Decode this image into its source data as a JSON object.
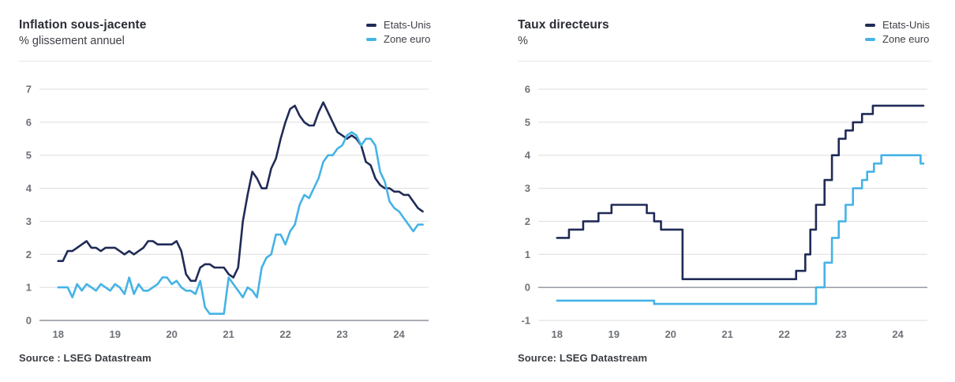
{
  "colors": {
    "us": "#202b57",
    "euro": "#45b3e6",
    "grid": "#dcddde",
    "zero_axis": "#8e929a",
    "tick_label": "#6e7278",
    "title": "#2a2d33",
    "subtitle": "#3c3f45",
    "source": "#3a3d43",
    "divider": "#e8e8ea"
  },
  "panels": [
    {
      "source": "Source : LSEG Datastream"
    },
    {
      "source": "Source: LSEG Datastream"
    }
  ],
  "chart_data": [
    {
      "type": "line",
      "title": "Inflation sous-jacente",
      "ylabel": "% glissement annuel",
      "x_start_year": 2018,
      "x_frequency": "monthly",
      "xtick_years": [
        2018,
        2019,
        2020,
        2021,
        2022,
        2023,
        2024
      ],
      "xtick_labels": [
        "18",
        "19",
        "20",
        "21",
        "22",
        "23",
        "24"
      ],
      "xlim": [
        2017.67,
        2024.52
      ],
      "ylim": [
        0,
        7
      ],
      "yticks": [
        0,
        1,
        2,
        3,
        4,
        5,
        6,
        7
      ],
      "grid": "horizontal",
      "legend_position": "top-right",
      "series": [
        {
          "name": "Etats-Unis",
          "color_key": "us",
          "values": [
            1.8,
            1.8,
            2.1,
            2.1,
            2.2,
            2.3,
            2.4,
            2.2,
            2.2,
            2.1,
            2.2,
            2.2,
            2.2,
            2.1,
            2.0,
            2.1,
            2.0,
            2.1,
            2.2,
            2.4,
            2.4,
            2.3,
            2.3,
            2.3,
            2.3,
            2.4,
            2.1,
            1.4,
            1.2,
            1.2,
            1.6,
            1.7,
            1.7,
            1.6,
            1.6,
            1.6,
            1.4,
            1.3,
            1.6,
            3.0,
            3.8,
            4.5,
            4.3,
            4.0,
            4.0,
            4.6,
            4.9,
            5.5,
            6.0,
            6.4,
            6.5,
            6.2,
            6.0,
            5.9,
            5.9,
            6.3,
            6.6,
            6.3,
            6.0,
            5.7,
            5.6,
            5.5,
            5.6,
            5.5,
            5.3,
            4.8,
            4.7,
            4.3,
            4.1,
            4.0,
            4.0,
            3.9,
            3.9,
            3.8,
            3.8,
            3.6,
            3.4,
            3.3
          ]
        },
        {
          "name": "Zone euro",
          "color_key": "euro",
          "values": [
            1.0,
            1.0,
            1.0,
            0.7,
            1.1,
            0.9,
            1.1,
            1.0,
            0.9,
            1.1,
            1.0,
            0.9,
            1.1,
            1.0,
            0.8,
            1.3,
            0.8,
            1.1,
            0.9,
            0.9,
            1.0,
            1.1,
            1.3,
            1.3,
            1.1,
            1.2,
            1.0,
            0.9,
            0.9,
            0.8,
            1.2,
            0.4,
            0.2,
            0.2,
            0.2,
            0.2,
            1.3,
            1.1,
            0.9,
            0.7,
            1.0,
            0.9,
            0.7,
            1.6,
            1.9,
            2.0,
            2.6,
            2.6,
            2.3,
            2.7,
            2.9,
            3.5,
            3.8,
            3.7,
            4.0,
            4.3,
            4.8,
            5.0,
            5.0,
            5.2,
            5.3,
            5.6,
            5.7,
            5.6,
            5.3,
            5.5,
            5.5,
            5.3,
            4.5,
            4.2,
            3.6,
            3.4,
            3.3,
            3.1,
            2.9,
            2.7,
            2.9,
            2.9
          ]
        }
      ]
    },
    {
      "type": "step",
      "title": "Taux directeurs",
      "ylabel": "%",
      "xtick_years": [
        2018,
        2019,
        2020,
        2021,
        2022,
        2023,
        2024
      ],
      "xtick_labels": [
        "18",
        "19",
        "20",
        "21",
        "22",
        "23",
        "24"
      ],
      "xlim": [
        2017.67,
        2024.52
      ],
      "x_end": 2024.45,
      "ylim": [
        -1,
        6
      ],
      "yticks": [
        -1,
        0,
        1,
        2,
        3,
        4,
        5,
        6
      ],
      "grid": "horizontal",
      "legend_position": "top-right",
      "series": [
        {
          "name": "Etats-Unis",
          "color_key": "us",
          "points": [
            [
              2018.0,
              1.5
            ],
            [
              2018.21,
              1.75
            ],
            [
              2018.46,
              2.0
            ],
            [
              2018.73,
              2.25
            ],
            [
              2018.96,
              2.5
            ],
            [
              2019.58,
              2.25
            ],
            [
              2019.71,
              2.0
            ],
            [
              2019.83,
              1.75
            ],
            [
              2020.21,
              0.25
            ],
            [
              2022.21,
              0.5
            ],
            [
              2022.37,
              1.0
            ],
            [
              2022.46,
              1.75
            ],
            [
              2022.56,
              2.5
            ],
            [
              2022.71,
              3.25
            ],
            [
              2022.84,
              4.0
            ],
            [
              2022.96,
              4.5
            ],
            [
              2023.08,
              4.75
            ],
            [
              2023.21,
              5.0
            ],
            [
              2023.37,
              5.25
            ],
            [
              2023.56,
              5.5
            ]
          ]
        },
        {
          "name": "Zone euro",
          "color_key": "euro",
          "points": [
            [
              2018.0,
              -0.4
            ],
            [
              2019.71,
              -0.5
            ],
            [
              2022.56,
              0.0
            ],
            [
              2022.71,
              0.75
            ],
            [
              2022.84,
              1.5
            ],
            [
              2022.96,
              2.0
            ],
            [
              2023.08,
              2.5
            ],
            [
              2023.21,
              3.0
            ],
            [
              2023.37,
              3.25
            ],
            [
              2023.46,
              3.5
            ],
            [
              2023.58,
              3.75
            ],
            [
              2023.71,
              4.0
            ],
            [
              2024.4,
              3.75
            ]
          ]
        }
      ]
    }
  ]
}
